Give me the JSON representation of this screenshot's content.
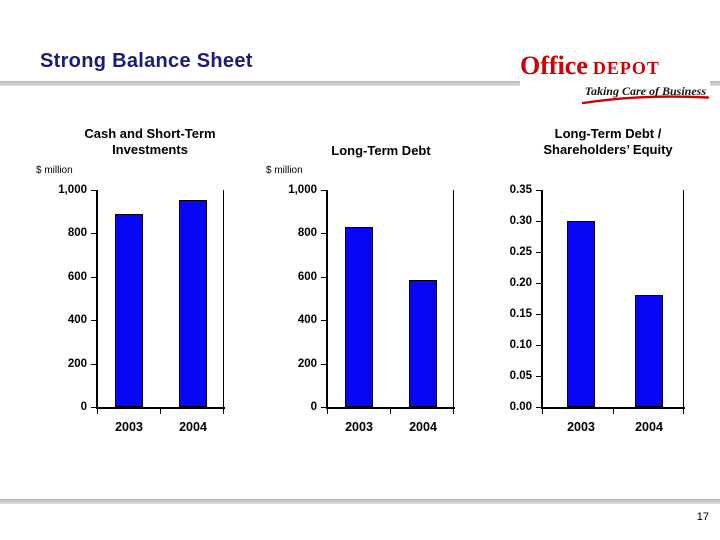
{
  "header": {
    "title": "Strong Balance Sheet"
  },
  "logo": {
    "word1": "Office",
    "word2": "DEPOT",
    "tagline": "Taking Care of Business"
  },
  "footer": {
    "page_number": "17"
  },
  "colors": {
    "title_navy": "#1b1b78",
    "bar_fill": "#0707f5",
    "bar_border": "#000000",
    "logo_red": "#cc0000",
    "rule_gray": "#c8c8c8"
  },
  "chart_data": [
    {
      "type": "bar",
      "title": "Cash and Short-Term\nInvestments",
      "unit_label": "$ million",
      "categories": [
        "2003",
        "2004"
      ],
      "values": [
        890,
        955
      ],
      "ylim": [
        0,
        1000
      ],
      "yticks": [
        {
          "value": 0,
          "label": "0"
        },
        {
          "value": 200,
          "label": "200"
        },
        {
          "value": 400,
          "label": "400"
        },
        {
          "value": 600,
          "label": "600"
        },
        {
          "value": 800,
          "label": "800"
        },
        {
          "value": 1000,
          "label": "1,000"
        }
      ],
      "grid": false,
      "legend": false
    },
    {
      "type": "bar",
      "title": "Long-Term Debt",
      "unit_label": "$ million",
      "categories": [
        "2003",
        "2004"
      ],
      "values": [
        830,
        585
      ],
      "ylim": [
        0,
        1000
      ],
      "yticks": [
        {
          "value": 0,
          "label": "0"
        },
        {
          "value": 200,
          "label": "200"
        },
        {
          "value": 400,
          "label": "400"
        },
        {
          "value": 600,
          "label": "600"
        },
        {
          "value": 800,
          "label": "800"
        },
        {
          "value": 1000,
          "label": "1,000"
        }
      ],
      "grid": false,
      "legend": false
    },
    {
      "type": "bar",
      "title": "Long-Term Debt /\nShareholders’ Equity",
      "unit_label": "",
      "categories": [
        "2003",
        "2004"
      ],
      "values": [
        0.3,
        0.18
      ],
      "ylim": [
        0,
        0.35
      ],
      "yticks": [
        {
          "value": 0.0,
          "label": "0.00"
        },
        {
          "value": 0.05,
          "label": "0.05"
        },
        {
          "value": 0.1,
          "label": "0.10"
        },
        {
          "value": 0.15,
          "label": "0.15"
        },
        {
          "value": 0.2,
          "label": "0.20"
        },
        {
          "value": 0.25,
          "label": "0.25"
        },
        {
          "value": 0.3,
          "label": "0.30"
        },
        {
          "value": 0.35,
          "label": "0.35"
        }
      ],
      "grid": false,
      "legend": false
    }
  ]
}
